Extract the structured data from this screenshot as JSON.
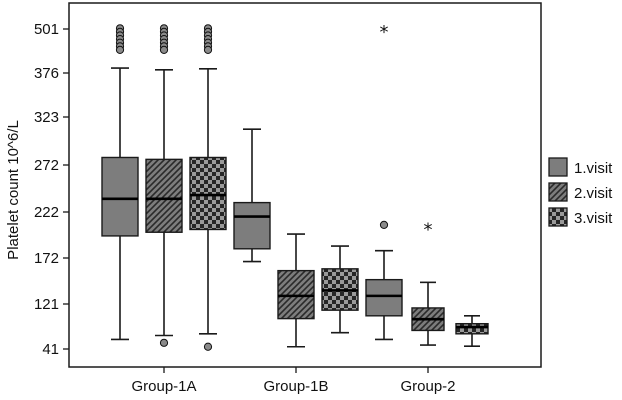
{
  "chart_data": {
    "type": "boxplot",
    "ylabel": "Platelet count 10^6/L",
    "xlabel": "",
    "y_ticks": [
      "501",
      "376",
      "323",
      "272",
      "222",
      "172",
      "121",
      "41"
    ],
    "categories": [
      "Group-1A",
      "Group-1B",
      "Group-2"
    ],
    "legend_position": "right",
    "series": [
      {
        "name": "1.visit",
        "pattern": "solid",
        "boxes": [
          {
            "category": "Group-1A",
            "whisker_low": 58,
            "q1": 196,
            "median": 236,
            "q3": 280,
            "whisker_high": 390,
            "outliers": [
              {
                "value": 503,
                "marker": "circle"
              }
            ]
          },
          {
            "category": "Group-1B",
            "whisker_low": 168,
            "q1": 182,
            "median": 217,
            "q3": 232,
            "whisker_high": 310,
            "outliers": []
          },
          {
            "category": "Group-2",
            "whisker_low": 58,
            "q1": 100,
            "median": 130,
            "q3": 148,
            "whisker_high": 180,
            "outliers": [
              {
                "value": 208,
                "marker": "circle"
              },
              {
                "value": 501,
                "marker": "star"
              }
            ]
          }
        ]
      },
      {
        "name": "2.visit",
        "pattern": "hatched",
        "boxes": [
          {
            "category": "Group-1A",
            "whisker_low": 65,
            "q1": 200,
            "median": 236,
            "q3": 278,
            "whisker_high": 385,
            "outliers": [
              {
                "value": 503,
                "marker": "circle"
              },
              {
                "value": 52,
                "marker": "circle"
              }
            ]
          },
          {
            "category": "Group-1B",
            "whisker_low": 45,
            "q1": 95,
            "median": 130,
            "q3": 158,
            "whisker_high": 198,
            "outliers": []
          },
          {
            "category": "Group-2",
            "whisker_low": 48,
            "q1": 74,
            "median": 94,
            "q3": 114,
            "whisker_high": 145,
            "outliers": [
              {
                "value": 206,
                "marker": "star"
              }
            ]
          }
        ]
      },
      {
        "name": "3.visit",
        "pattern": "checkered",
        "boxes": [
          {
            "category": "Group-1A",
            "whisker_low": 68,
            "q1": 203,
            "median": 240,
            "q3": 280,
            "whisker_high": 388,
            "outliers": [
              {
                "value": 503,
                "marker": "circle"
              },
              {
                "value": 45,
                "marker": "circle"
              }
            ]
          },
          {
            "category": "Group-1B",
            "whisker_low": 70,
            "q1": 110,
            "median": 136,
            "q3": 160,
            "whisker_high": 185,
            "outliers": []
          },
          {
            "category": "Group-2",
            "whisker_low": 46,
            "q1": 68,
            "median": 80,
            "q3": 86,
            "whisker_high": 100,
            "outliers": []
          }
        ]
      }
    ]
  },
  "legend": {
    "items": [
      {
        "label": "1.visit",
        "pattern": "solid"
      },
      {
        "label": "2.visit",
        "pattern": "hatched"
      },
      {
        "label": "3.visit",
        "pattern": "checkered"
      }
    ]
  },
  "colors": {
    "box_fill": "#7d7d7d",
    "stroke": "#1a1a1a",
    "check_light": "#9a9a9a",
    "check_dark": "#262626",
    "background": "#ffffff"
  }
}
